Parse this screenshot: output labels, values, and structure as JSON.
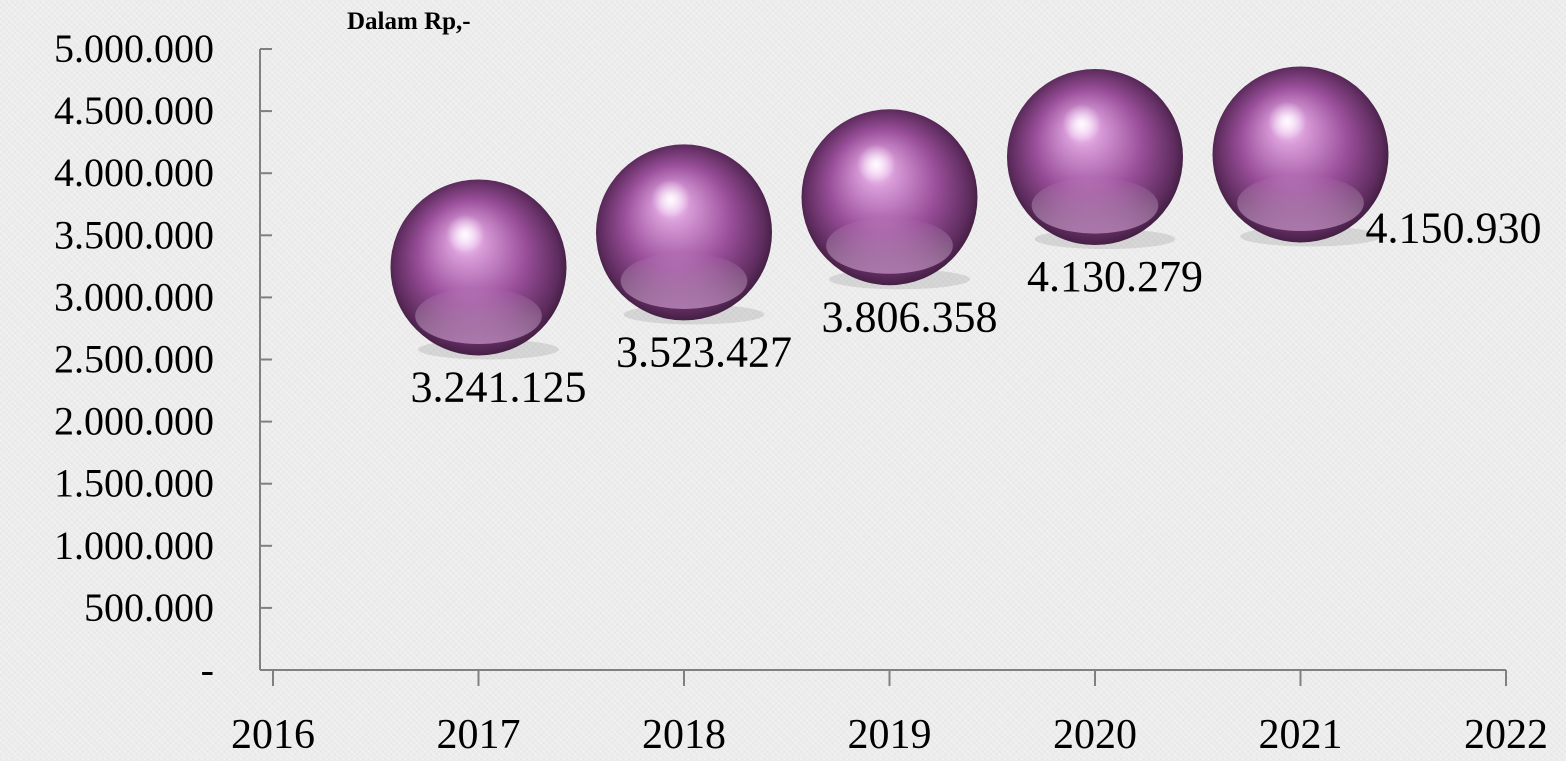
{
  "chart_data": {
    "type": "scatter",
    "unit_label": "Dalam Rp,-",
    "x_tick_labels": [
      "2016",
      "2017",
      "2018",
      "2019",
      "2020",
      "2021",
      "2022"
    ],
    "y_tick_labels": [
      "-",
      "500.000",
      "1.000.000",
      "1.500.000",
      "2.000.000",
      "2.500.000",
      "3.000.000",
      "3.500.000",
      "4.000.000",
      "4.500.000",
      "5.000.000"
    ],
    "xlim": [
      2016,
      2022
    ],
    "ylim": [
      0,
      5000000
    ],
    "points": [
      {
        "x": 2017,
        "y": 3241125,
        "label": "3.241.125"
      },
      {
        "x": 2018,
        "y": 3523427,
        "label": "3.523.427"
      },
      {
        "x": 2019,
        "y": 3806358,
        "label": "3.806.358"
      },
      {
        "x": 2020,
        "y": 4130279,
        "label": "4.130.279"
      },
      {
        "x": 2021,
        "y": 4150930,
        "label": "4.150.930"
      }
    ],
    "marker_style": "3d-sphere",
    "marker_color": "#a85aa8",
    "grid": false,
    "legend": "none"
  }
}
